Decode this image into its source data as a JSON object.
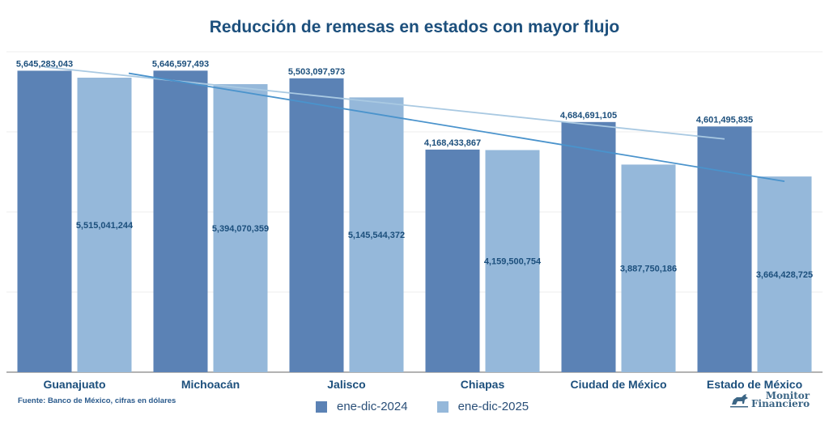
{
  "chart_data": {
    "type": "bar",
    "title": "Reducción de remesas en estados con mayor flujo",
    "xlabel": "",
    "ylabel": "",
    "ylim": [
      0,
      6000000000
    ],
    "grid": true,
    "gridline_values": [
      0,
      1500000000,
      3000000000,
      4500000000,
      6000000000
    ],
    "categories": [
      "Guanajuato",
      "Michoacán",
      "Jalisco",
      "Chiapas",
      "Ciudad de México",
      "Estado de México"
    ],
    "series": [
      {
        "name": "ene-dic-2024",
        "color": "#5b82b5",
        "values": [
          5645283043,
          5646597493,
          5503097973,
          4168433867,
          4684691105,
          4601495835
        ],
        "labels": [
          "5,645,283,043",
          "5,646,597,493",
          "5,503,097,973",
          "4,168,433,867",
          "4,684,691,105",
          "4,601,495,835"
        ],
        "label_position": "top"
      },
      {
        "name": "ene-dic-2025",
        "color": "#95b8da",
        "values": [
          5515041244,
          5394070359,
          5145544372,
          4159500754,
          3887750186,
          3664428725
        ],
        "labels": [
          "5,515,041,244",
          "5,394,070,359",
          "5,145,544,372",
          "4,159,500,754",
          "3,887,750,186",
          "3,664,428,725"
        ],
        "label_position": "inside"
      }
    ],
    "trendlines": [
      {
        "series": "ene-dic-2024",
        "type": "linear",
        "color": "#a9c9e2"
      },
      {
        "series": "ene-dic-2025",
        "type": "linear",
        "color": "#4a93cc"
      }
    ],
    "legend_position": "bottom"
  },
  "footer": {
    "source": "Fuente: Banco de México, cifras en dólares",
    "logo_line1": "Monitor",
    "logo_line2": "Financiero"
  }
}
